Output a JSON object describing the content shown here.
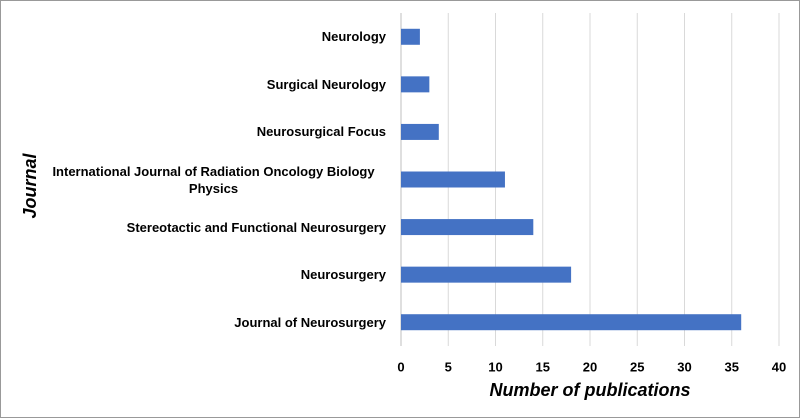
{
  "chart_data": {
    "type": "bar",
    "orientation": "horizontal",
    "categories": [
      "Neurology",
      "Surgical Neurology",
      "Neurosurgical Focus",
      "International Journal of Radiation Oncology Biology Physics",
      "Stereotactic and Functional Neurosurgery",
      "Neurosurgery",
      "Journal of Neurosurgery"
    ],
    "values": [
      2,
      3,
      4,
      11,
      14,
      18,
      36
    ],
    "color": "#4472c4",
    "xlim": [
      0,
      40
    ],
    "xticks": [
      0,
      5,
      10,
      15,
      20,
      25,
      30,
      35,
      40
    ],
    "x_label": "Number of publications",
    "y_label": "Journal",
    "grid": true
  }
}
